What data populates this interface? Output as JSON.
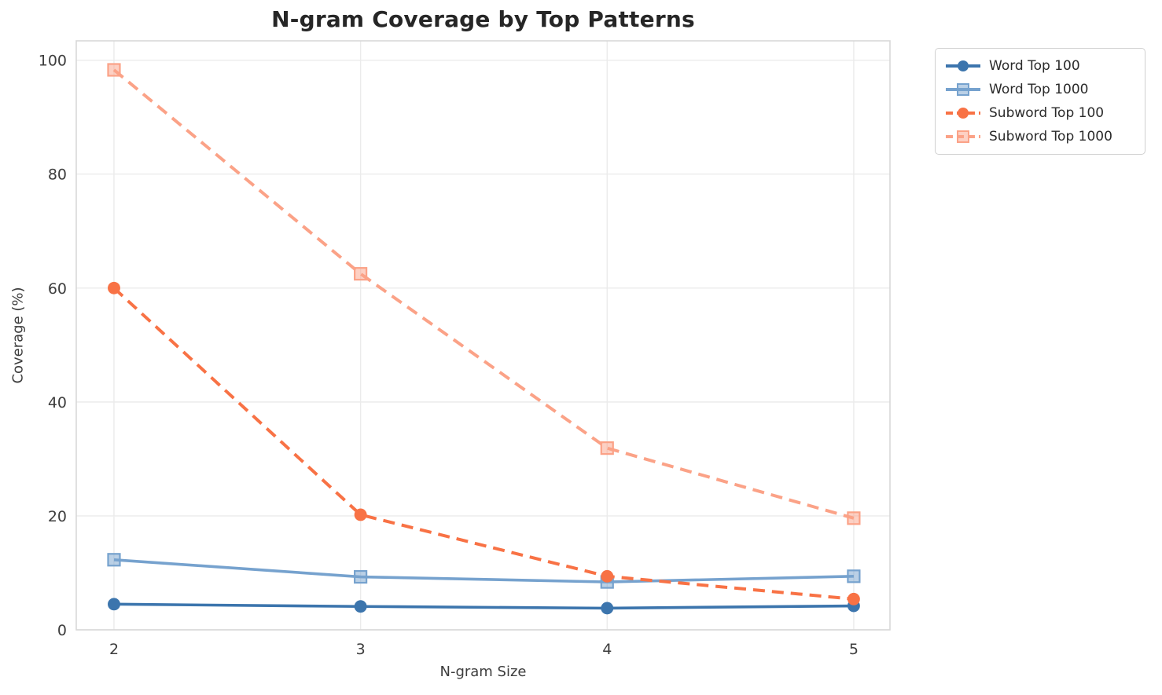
{
  "figure": {
    "background": "#ffffff",
    "grid_color": "#ebebeb",
    "spine_color": "#d8d8d8",
    "tick_text_color": "#3d3d3d",
    "title_color": "#262626"
  },
  "chart_data": {
    "type": "line",
    "title": "N-gram Coverage by Top Patterns",
    "xlabel": "N-gram Size",
    "ylabel": "Coverage (%)",
    "x": [
      2,
      3,
      4,
      5
    ],
    "xticks": [
      "2",
      "3",
      "4",
      "5"
    ],
    "yticks": [
      "0",
      "20",
      "40",
      "60",
      "80",
      "100"
    ],
    "ytick_values": [
      0,
      20,
      40,
      60,
      80,
      100
    ],
    "xlim": [
      1.847,
      5.147
    ],
    "ylim": [
      0,
      103.4
    ],
    "grid": true,
    "legend_position": "outside-top-right",
    "series": [
      {
        "name": "Word Top 100",
        "color": "#3c75ad",
        "line": "solid",
        "marker": "circle",
        "values": [
          4.5,
          4.1,
          3.8,
          4.2
        ]
      },
      {
        "name": "Word Top 1000",
        "color": "#76a2ce",
        "line": "solid",
        "marker": "square",
        "values": [
          12.3,
          9.3,
          8.4,
          9.4
        ]
      },
      {
        "name": "Subword Top 100",
        "color": "#f87245",
        "line": "dashed",
        "marker": "circle",
        "values": [
          60.0,
          20.2,
          9.4,
          5.4
        ]
      },
      {
        "name": "Subword Top 1000",
        "color": "#fba287",
        "line": "dashed",
        "marker": "square",
        "values": [
          98.3,
          62.5,
          31.9,
          19.6
        ]
      }
    ]
  }
}
